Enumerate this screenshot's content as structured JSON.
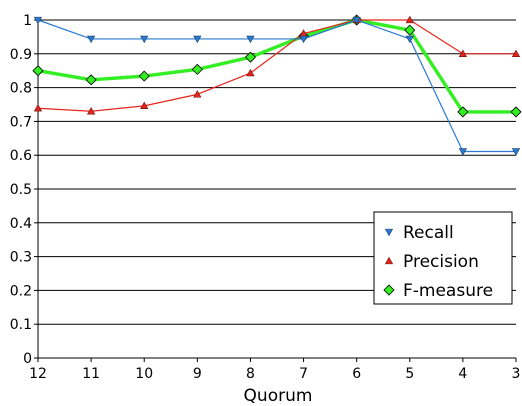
{
  "chart_data": {
    "type": "line",
    "xlabel": "Quorum",
    "ylabel": "",
    "x": [
      12,
      11,
      10,
      9,
      8,
      7,
      6,
      5,
      4,
      3
    ],
    "x_reversed": true,
    "x_tick_labels": [
      "12",
      "11",
      "10",
      "9",
      "8",
      "7",
      "6",
      "5",
      "4",
      "3"
    ],
    "ylim": [
      0,
      1
    ],
    "y_tick_labels": [
      "0",
      "0.1",
      "0.2",
      "0.3",
      "0.4",
      "0.5",
      "0.6",
      "0.7",
      "0.8",
      "0.9",
      "1"
    ],
    "grid": "horizontal",
    "legend_position": "bottom-right",
    "series": [
      {
        "name": "Recall",
        "color": "#2a7ad5",
        "marker": "triangle-down",
        "values": [
          1.0,
          0.944,
          0.944,
          0.944,
          0.944,
          0.944,
          1.0,
          0.944,
          0.611,
          0.611
        ]
      },
      {
        "name": "Precision",
        "color": "#e8251c",
        "marker": "triangle-up",
        "values": [
          0.739,
          0.73,
          0.746,
          0.78,
          0.843,
          0.96,
          1.0,
          1.0,
          0.9,
          0.9
        ]
      },
      {
        "name": "F-measure",
        "color": "#33ee22",
        "marker": "diamond",
        "values": [
          0.85,
          0.823,
          0.834,
          0.854,
          0.89,
          0.952,
          1.0,
          0.97,
          0.728,
          0.728
        ]
      }
    ]
  }
}
